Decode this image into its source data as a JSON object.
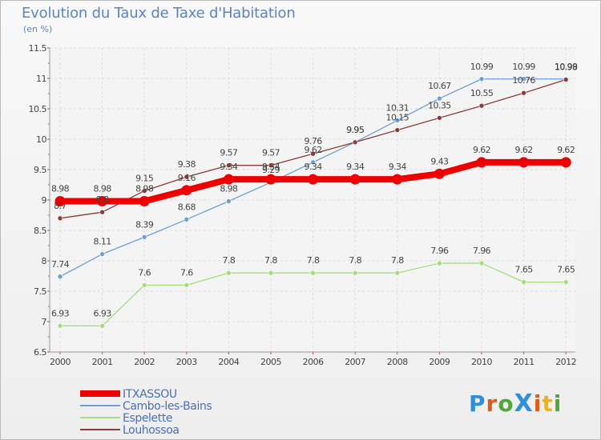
{
  "header": {
    "title": "Evolution du Taux de Taxe d'Habitation",
    "unit": "(en %)"
  },
  "logo": {
    "text": "ProXiti",
    "colors": [
      "#2f8fd8",
      "#e05a1a",
      "#4fa83a",
      "#2f8fd8",
      "#e05a1a",
      "#f2b21a",
      "#4fa83a"
    ]
  },
  "chart_data": {
    "type": "line",
    "categories": [
      "2000",
      "2001",
      "2002",
      "2003",
      "2004",
      "2005",
      "2006",
      "2007",
      "2008",
      "2009",
      "2010",
      "2011",
      "2012"
    ],
    "ylim": [
      6.5,
      11.5
    ],
    "yticks": [
      "6.5",
      "7",
      "7.5",
      "8",
      "8.5",
      "9",
      "9.5",
      "10",
      "10.5",
      "11",
      "11.5"
    ],
    "grid": true,
    "legend_position": "bottom-left",
    "series": [
      {
        "name": "ITXASSOU",
        "color": "#ee0000",
        "values": [
          8.98,
          8.98,
          8.98,
          9.16,
          9.34,
          9.34,
          9.34,
          9.34,
          9.34,
          9.43,
          9.62,
          9.62,
          9.62
        ],
        "labels": [
          "8.98",
          "8.98",
          "8.98",
          "9.16",
          "9.34",
          "9.34",
          "9.34",
          "9.34",
          "9.34",
          "9.43",
          "9.62",
          "9.62",
          "9.62"
        ]
      },
      {
        "name": "Cambo-les-Bains",
        "color": "#6e9fd4",
        "values": [
          7.74,
          8.11,
          8.39,
          8.68,
          8.98,
          9.29,
          9.62,
          9.95,
          10.31,
          10.67,
          10.99,
          10.99,
          10.99
        ],
        "labels": [
          "7.74",
          "8.11",
          "8.39",
          "8.68",
          "8.98",
          "9.29",
          "9.62",
          "9.95",
          "10.31",
          "10.67",
          "10.99",
          "10.99",
          "10.99"
        ]
      },
      {
        "name": "Espelette",
        "color": "#a6dc7a",
        "values": [
          6.93,
          6.93,
          7.6,
          7.6,
          7.8,
          7.8,
          7.8,
          7.8,
          7.8,
          7.96,
          7.96,
          7.65,
          7.65
        ],
        "labels": [
          "6.93",
          "6.93",
          "7.6",
          "7.6",
          "7.8",
          "7.8",
          "7.8",
          "7.8",
          "7.8",
          "7.96",
          "7.96",
          "7.65",
          "7.65"
        ]
      },
      {
        "name": "Louhossoa",
        "color": "#8b3b3b",
        "values": [
          8.7,
          8.8,
          9.15,
          9.38,
          9.57,
          9.57,
          9.76,
          9.95,
          10.15,
          10.35,
          10.55,
          10.76,
          10.98
        ],
        "labels": [
          "8.7",
          "8.8",
          "9.15",
          "9.38",
          "9.57",
          "9.57",
          "9.76",
          "9.95",
          "10.15",
          "10.35",
          "10.55",
          "10.76",
          "10.98"
        ]
      }
    ]
  }
}
